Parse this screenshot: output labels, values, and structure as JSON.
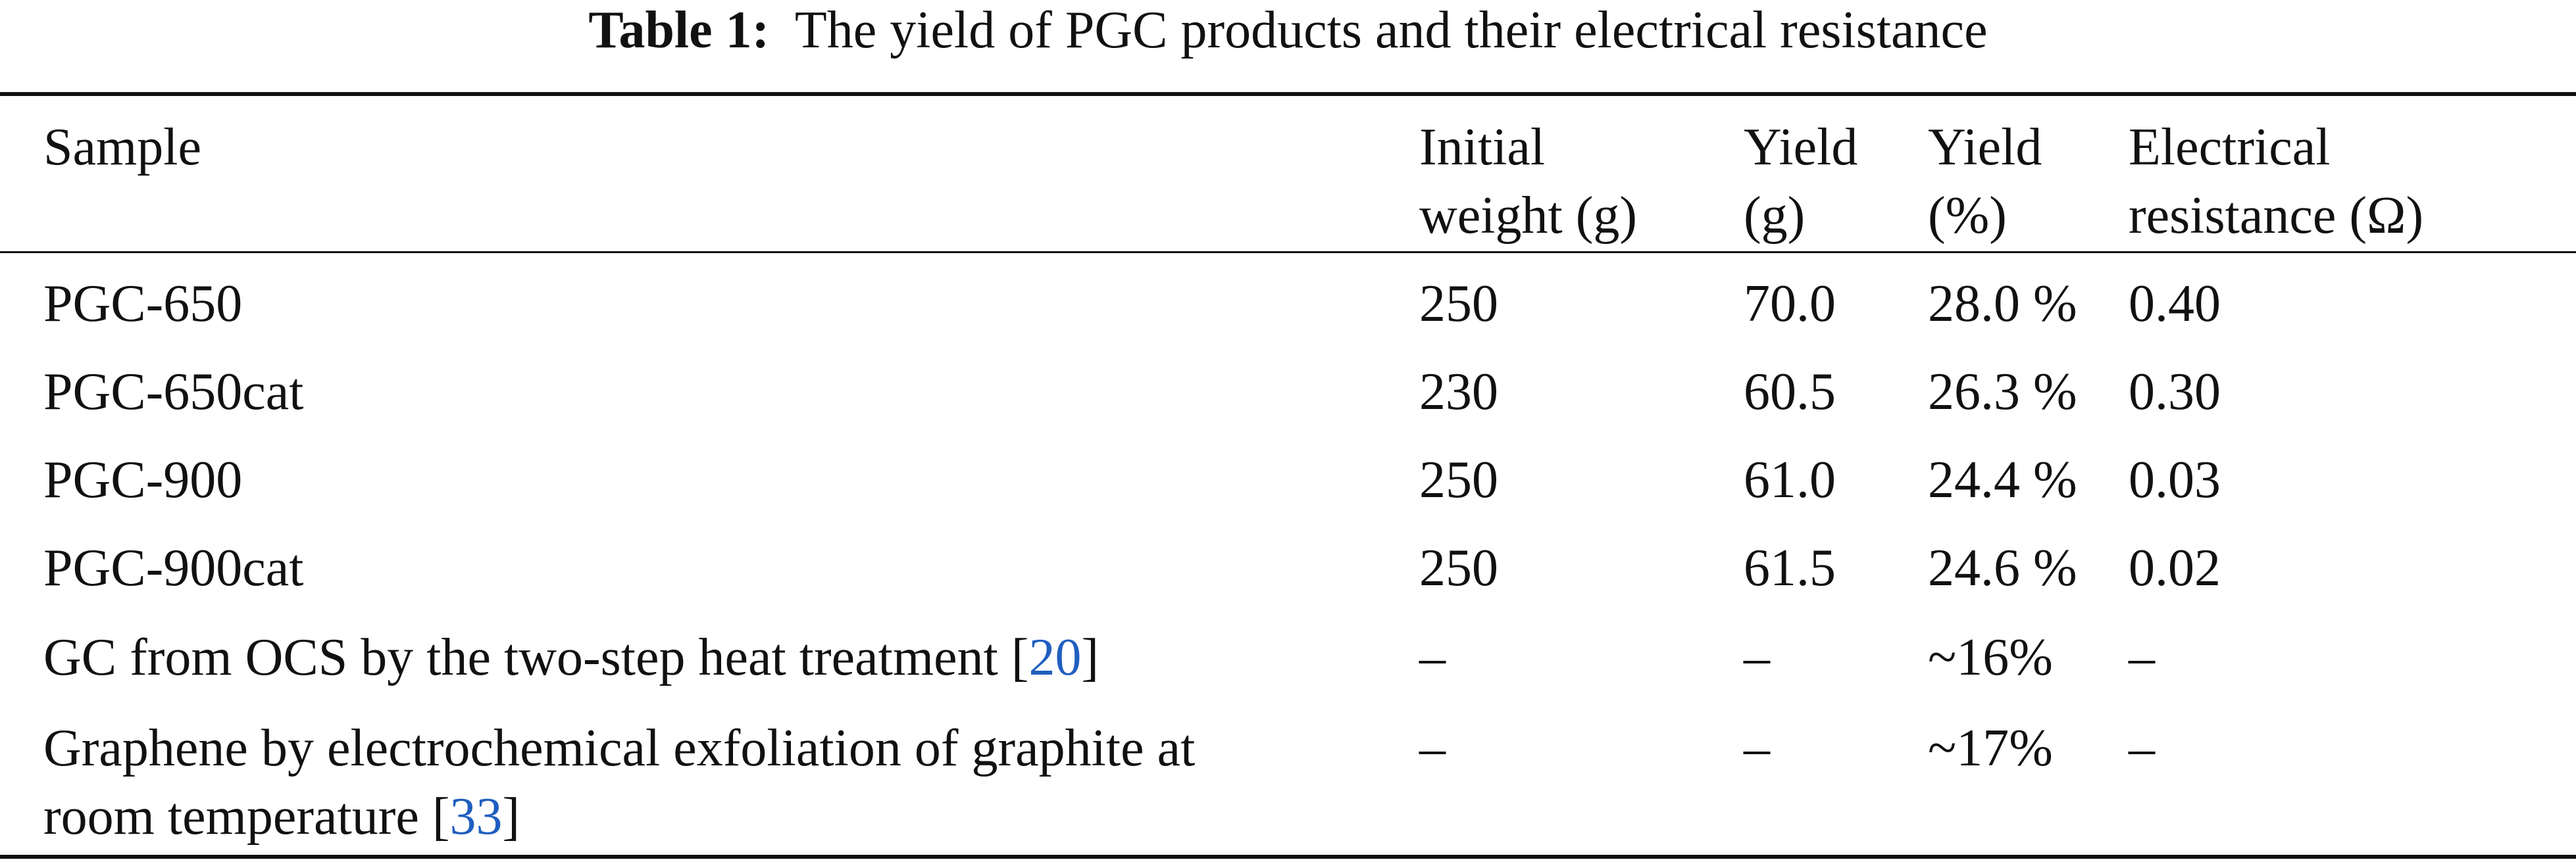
{
  "caption": {
    "label": "Table 1:",
    "text": "The yield of PGC products and their electrical resistance"
  },
  "header": {
    "sample": "Sample",
    "initial_weight": [
      "Initial",
      "weight (g)"
    ],
    "yield_g": [
      "Yield",
      "(g)"
    ],
    "yield_pct": [
      "Yield",
      "(%)"
    ],
    "resistance": [
      "Electrical",
      "resistance (Ω)"
    ]
  },
  "rows": [
    {
      "sample": "PGC-650",
      "initial_weight": "250",
      "yield_g": "70.0",
      "yield_pct": "28.0 %",
      "resistance": "0.40"
    },
    {
      "sample": "PGC-650cat",
      "initial_weight": "230",
      "yield_g": "60.5",
      "yield_pct": "26.3 %",
      "resistance": "0.30"
    },
    {
      "sample": "PGC-900",
      "initial_weight": "250",
      "yield_g": "61.0",
      "yield_pct": "24.4 %",
      "resistance": "0.03"
    },
    {
      "sample": "PGC-900cat",
      "initial_weight": "250",
      "yield_g": "61.5",
      "yield_pct": "24.6 %",
      "resistance": "0.02"
    },
    {
      "sample_text": "GC from OCS by the two-step heat treatment ",
      "sample_ref": "20",
      "initial_weight": "–",
      "yield_g": "–",
      "yield_pct": "~16%",
      "resistance": "–"
    },
    {
      "sample_line1": "Graphene by electrochemical exfoliation of graphite at",
      "sample_line2_text": "room temperature ",
      "sample_ref": "33",
      "initial_weight": "–",
      "yield_g": "–",
      "yield_pct": "~17%",
      "resistance": "–"
    }
  ]
}
